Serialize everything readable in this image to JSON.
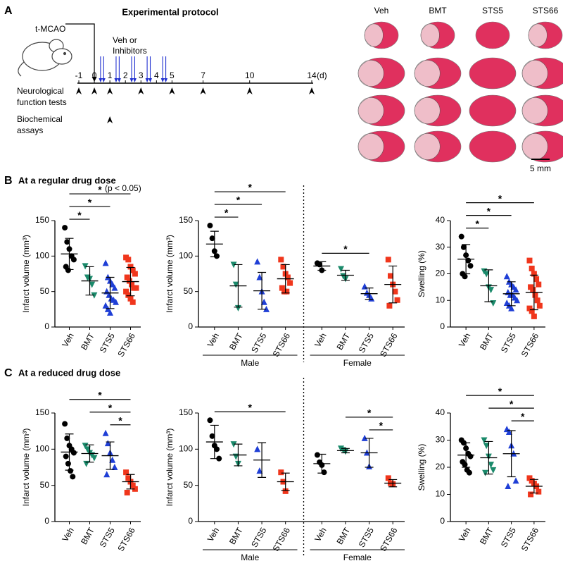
{
  "protocol": {
    "panel": "A",
    "title": "Experimental protocol",
    "surgery": {
      "label": "t-MCAO",
      "day": 0
    },
    "treatment_label": [
      "Veh or",
      "Inhibitors"
    ],
    "injection_days": [
      0.4,
      0.6,
      1.4,
      1.6,
      2.4,
      2.6,
      3.4,
      3.6,
      4.4,
      4.6
    ],
    "timeline": {
      "xlim": [
        -1,
        14
      ],
      "ticks": [
        -1,
        0,
        1,
        2,
        3,
        4,
        5,
        7,
        10,
        14
      ],
      "unit": "(d)"
    },
    "neuro_label": [
      "Neurological",
      "function tests"
    ],
    "neuro_days": [
      -1,
      0,
      1,
      3,
      5,
      7,
      10,
      14
    ],
    "biochem_label": [
      "Biochemical",
      "assays"
    ],
    "biochem_days": [
      1
    ],
    "image_columns": [
      "Veh",
      "BMT",
      "STS5",
      "STS66"
    ],
    "scale_bar": "5 mm"
  },
  "chart_data": [
    {
      "type": "dot",
      "panel": "B",
      "heading": "At a regular drug dose",
      "ylabel": "Infarct volume (mm³)",
      "ylim": [
        0,
        150
      ],
      "yticks": [
        0,
        50,
        100,
        150
      ],
      "groups": [
        {
          "name": "Veh",
          "color": "#000000",
          "marker": "circle",
          "values": [
            140,
            120,
            110,
            100,
            95,
            85,
            80
          ],
          "mean": 103,
          "sd": 22
        },
        {
          "name": "BMT",
          "color": "#1b8a6b",
          "marker": "triangle-down",
          "values": [
            86,
            70,
            68,
            60,
            45
          ],
          "mean": 65,
          "sd": 20
        },
        {
          "name": "STS5",
          "color": "#1f3fd6",
          "marker": "triangle-up",
          "values": [
            90,
            70,
            65,
            60,
            55,
            50,
            45,
            40,
            38,
            35,
            30,
            25,
            20
          ],
          "mean": 48,
          "sd": 22
        },
        {
          "name": "STS66",
          "color": "#f0361c",
          "marker": "square",
          "values": [
            98,
            95,
            85,
            80,
            75,
            70,
            65,
            60,
            55,
            55,
            50,
            45,
            40,
            35
          ],
          "mean": 64,
          "sd": 20
        }
      ],
      "brackets": [
        {
          "groups": [
            0,
            1
          ],
          "label": "*"
        },
        {
          "groups": [
            0,
            2
          ],
          "label": "*"
        },
        {
          "groups": [
            0,
            3
          ],
          "label": "*",
          "note": "(p < 0.05)"
        }
      ]
    },
    {
      "type": "dot",
      "ylabel": "Infarct volume (mm³)",
      "ylim": [
        0,
        150
      ],
      "yticks": [
        0,
        50,
        100,
        150
      ],
      "sections": [
        {
          "label": "Male",
          "groups": [
            {
              "name": "Veh",
              "color": "#000000",
              "marker": "circle",
              "values": [
                143,
                125,
                107,
                100
              ],
              "mean": 117,
              "sd": 18
            },
            {
              "name": "BMT",
              "color": "#1b8a6b",
              "marker": "triangle-down",
              "values": [
                88,
                60,
                27
              ],
              "mean": 58,
              "sd": 30
            },
            {
              "name": "STS5",
              "color": "#1f3fd6",
              "marker": "triangle-up",
              "values": [
                92,
                70,
                50,
                35,
                25
              ],
              "mean": 51,
              "sd": 26
            },
            {
              "name": "STS66",
              "color": "#f0361c",
              "marker": "square",
              "values": [
                95,
                85,
                75,
                70,
                62,
                55,
                50,
                50
              ],
              "mean": 68,
              "sd": 20
            }
          ],
          "brackets": [
            {
              "groups": [
                0,
                1
              ],
              "label": "*"
            },
            {
              "groups": [
                0,
                2
              ],
              "label": "*"
            },
            {
              "groups": [
                0,
                3
              ],
              "label": "*"
            }
          ]
        },
        {
          "label": "Female",
          "groups": [
            {
              "name": "Veh",
              "color": "#000000",
              "marker": "circle",
              "values": [
                90,
                88,
                80
              ],
              "mean": 86,
              "sd": 6
            },
            {
              "name": "BMT",
              "color": "#1b8a6b",
              "marker": "triangle-down",
              "values": [
                82,
                72,
                68
              ],
              "mean": 73,
              "sd": 7
            },
            {
              "name": "STS5",
              "color": "#1f3fd6",
              "marker": "triangle-up",
              "values": [
                57,
                48,
                45,
                40
              ],
              "mean": 47,
              "sd": 8
            },
            {
              "name": "STS66",
              "color": "#f0361c",
              "marker": "square",
              "values": [
                95,
                72,
                60,
                50,
                38,
                30
              ],
              "mean": 60,
              "sd": 26
            }
          ],
          "brackets": [
            {
              "groups": [
                0,
                2
              ],
              "label": "*"
            }
          ]
        }
      ]
    },
    {
      "type": "dot",
      "ylabel": "Swelling (%)",
      "ylim": [
        0,
        40
      ],
      "yticks": [
        0,
        10,
        20,
        30,
        40
      ],
      "groups": [
        {
          "name": "Veh",
          "color": "#000000",
          "marker": "circle",
          "values": [
            34,
            30,
            27,
            25,
            23,
            20,
            19
          ],
          "mean": 25.5,
          "sd": 5.5
        },
        {
          "name": "BMT",
          "color": "#1b8a6b",
          "marker": "triangle-down",
          "values": [
            21,
            20,
            15,
            14,
            9
          ],
          "mean": 15.5,
          "sd": 6
        },
        {
          "name": "STS5",
          "color": "#1f3fd6",
          "marker": "triangle-up",
          "values": [
            19,
            17,
            16,
            15,
            14,
            13,
            12,
            12,
            11,
            10,
            9,
            8,
            7
          ],
          "mean": 12.5,
          "sd": 4.5
        },
        {
          "name": "STS66",
          "color": "#f0361c",
          "marker": "square",
          "values": [
            25,
            22,
            20,
            18,
            16,
            15,
            14,
            12,
            10,
            8,
            7,
            6,
            4
          ],
          "mean": 13,
          "sd": 6.5
        }
      ],
      "brackets": [
        {
          "groups": [
            0,
            1
          ],
          "label": "*"
        },
        {
          "groups": [
            0,
            2
          ],
          "label": "*"
        },
        {
          "groups": [
            0,
            3
          ],
          "label": "*"
        }
      ]
    },
    {
      "type": "dot",
      "panel": "C",
      "heading": "At a reduced drug dose",
      "ylabel": "Infarct volume (mm³)",
      "ylim": [
        0,
        150
      ],
      "yticks": [
        0,
        50,
        100,
        150
      ],
      "groups": [
        {
          "name": "Veh",
          "color": "#000000",
          "marker": "circle",
          "values": [
            135,
            115,
            105,
            100,
            95,
            90,
            80,
            70,
            62
          ],
          "mean": 96,
          "sd": 25
        },
        {
          "name": "BMT",
          "color": "#1b8a6b",
          "marker": "triangle-down",
          "values": [
            105,
            100,
            95,
            92,
            88,
            80
          ],
          "mean": 94,
          "sd": 12
        },
        {
          "name": "STS5",
          "color": "#1f3fd6",
          "marker": "triangle-up",
          "values": [
            122,
            108,
            95,
            85,
            75,
            65
          ],
          "mean": 91,
          "sd": 19
        },
        {
          "name": "STS66",
          "color": "#f0361c",
          "marker": "square",
          "values": [
            68,
            60,
            55,
            50,
            45,
            40
          ],
          "mean": 55,
          "sd": 10
        }
      ],
      "brackets": [
        {
          "groups": [
            2,
            3
          ],
          "label": "*"
        },
        {
          "groups": [
            1,
            3
          ],
          "label": "*"
        },
        {
          "groups": [
            0,
            3
          ],
          "label": "*"
        }
      ]
    },
    {
      "type": "dot",
      "ylabel": "Infarct volume (mm³)",
      "ylim": [
        0,
        150
      ],
      "yticks": [
        0,
        50,
        100,
        150
      ],
      "sections": [
        {
          "label": "Male",
          "groups": [
            {
              "name": "Veh",
              "color": "#000000",
              "marker": "circle",
              "values": [
                140,
                118,
                105,
                100,
                87
              ],
              "mean": 110,
              "sd": 23
            },
            {
              "name": "BMT",
              "color": "#1b8a6b",
              "marker": "triangle-down",
              "values": [
                107,
                90,
                80
              ],
              "mean": 92,
              "sd": 15
            },
            {
              "name": "STS5",
              "color": "#1f3fd6",
              "marker": "triangle-up",
              "values": [
                100,
                70
              ],
              "mean": 85,
              "sd": 24
            },
            {
              "name": "STS66",
              "color": "#f0361c",
              "marker": "square",
              "values": [
                68,
                55,
                42
              ],
              "mean": 55,
              "sd": 12
            }
          ],
          "brackets": [
            {
              "groups": [
                0,
                3
              ],
              "label": "*"
            }
          ]
        },
        {
          "label": "Female",
          "groups": [
            {
              "name": "Veh",
              "color": "#000000",
              "marker": "circle",
              "values": [
                92,
                82,
                78,
                68
              ],
              "mean": 80,
              "sd": 13
            },
            {
              "name": "BMT",
              "color": "#1b8a6b",
              "marker": "triangle-down",
              "values": [
                101,
                99,
                97
              ],
              "mean": 98,
              "sd": 3
            },
            {
              "name": "STS5",
              "color": "#1f3fd6",
              "marker": "triangle-up",
              "values": [
                115,
                95,
                76
              ],
              "mean": 95,
              "sd": 20
            },
            {
              "name": "STS66",
              "color": "#f0361c",
              "marker": "square",
              "values": [
                60,
                53,
                52
              ],
              "mean": 53,
              "sd": 5
            }
          ],
          "brackets": [
            {
              "groups": [
                2,
                3
              ],
              "label": "*"
            },
            {
              "groups": [
                1,
                3
              ],
              "label": "*"
            }
          ]
        }
      ]
    },
    {
      "type": "dot",
      "ylabel": "Swelling (%)",
      "ylim": [
        0,
        40
      ],
      "yticks": [
        0,
        10,
        20,
        30,
        40
      ],
      "groups": [
        {
          "name": "Veh",
          "color": "#000000",
          "marker": "circle",
          "values": [
            30,
            29,
            27,
            25,
            24,
            22,
            21,
            19,
            18
          ],
          "mean": 24.5,
          "sd": 4.5
        },
        {
          "name": "BMT",
          "color": "#1b8a6b",
          "marker": "triangle-down",
          "values": [
            30,
            28,
            24,
            21,
            19,
            18
          ],
          "mean": 23.5,
          "sd": 6
        },
        {
          "name": "STS5",
          "color": "#1f3fd6",
          "marker": "triangle-up",
          "values": [
            34,
            33,
            28,
            25,
            15,
            13
          ],
          "mean": 25,
          "sd": 8.5
        },
        {
          "name": "STS66",
          "color": "#f0361c",
          "marker": "square",
          "values": [
            16,
            15,
            14,
            13,
            11,
            10
          ],
          "mean": 13,
          "sd": 2.5
        }
      ],
      "brackets": [
        {
          "groups": [
            2,
            3
          ],
          "label": "*"
        },
        {
          "groups": [
            1,
            3
          ],
          "label": "*"
        },
        {
          "groups": [
            0,
            3
          ],
          "label": "*"
        }
      ]
    }
  ]
}
